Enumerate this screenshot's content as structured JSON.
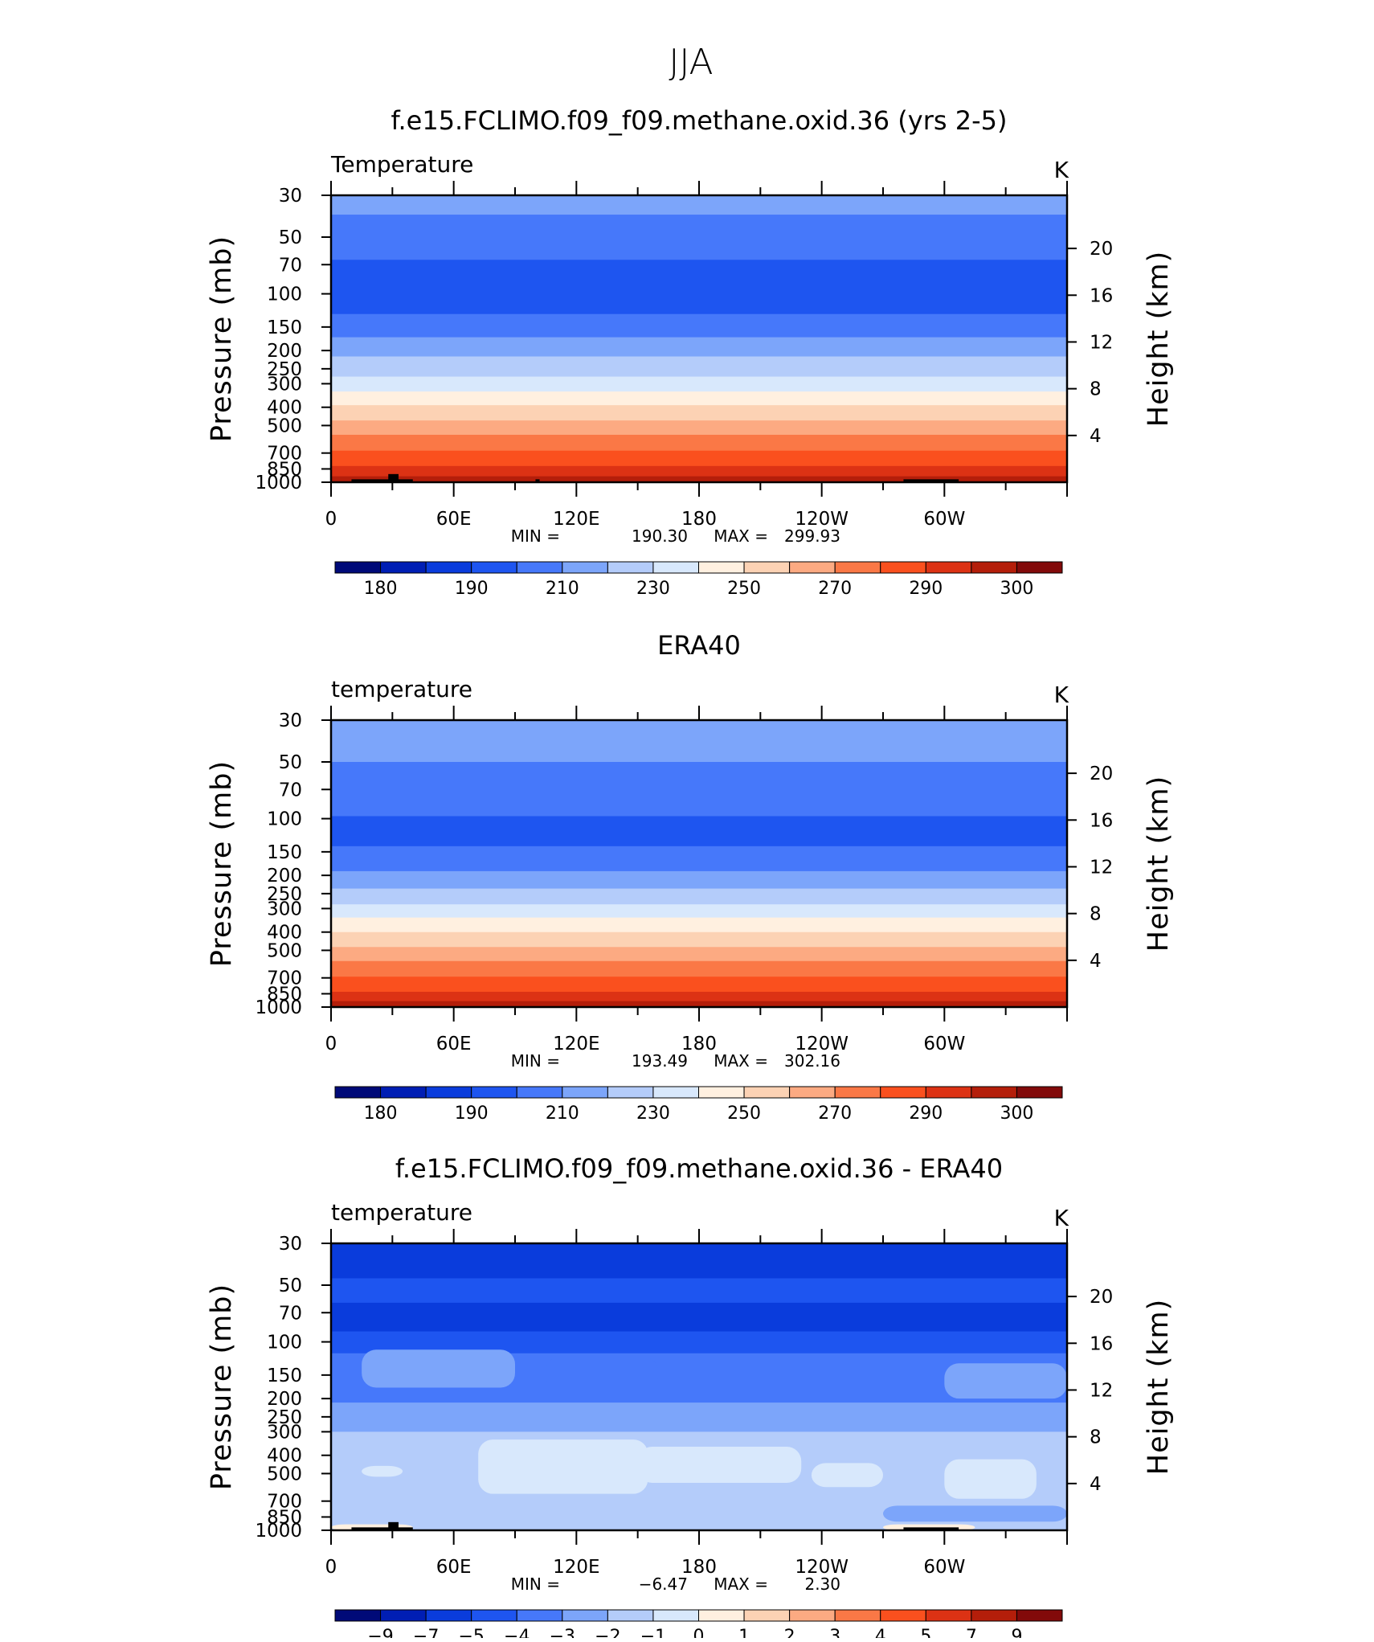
{
  "figure_title": "JJA",
  "colors": {
    "temperature_palette": [
      "#000a78",
      "#001eb4",
      "#0a3cdc",
      "#1e55f0",
      "#4678fa",
      "#7ca5fa",
      "#b4ccfa",
      "#d8e8fc",
      "#fff0e0",
      "#fcd2b4",
      "#fcaa82",
      "#fa7846",
      "#fa501e",
      "#dc3214",
      "#b41e0a",
      "#820a0a"
    ],
    "land": "#000000"
  },
  "chart_data": [
    {
      "type": "heatmap",
      "title": "f.e15.FCLIMO.f09_f09.methane.oxid.36 (yrs 2-5)",
      "left_string": "Temperature",
      "right_string": "K",
      "xlabel": "",
      "ylabel": "Pressure (mb)",
      "ylabel_right": "Height (km)",
      "x_ticks": [
        "0",
        "60E",
        "120E",
        "180",
        "120W",
        "60W"
      ],
      "y_ticks": [
        "30",
        "50",
        "70",
        "100",
        "150",
        "200",
        "250",
        "300",
        "400",
        "500",
        "700",
        "850",
        "1000"
      ],
      "y_right_ticks": [
        "20",
        "16",
        "12",
        "8",
        "4"
      ],
      "min_label": "MIN =",
      "min_value": "190.30",
      "max_label": "MAX =",
      "max_value": "299.93",
      "colorbar_labels": [
        "180",
        "190",
        "210",
        "230",
        "250",
        "270",
        "290",
        "300"
      ],
      "bands": [
        {
          "p_top": 30,
          "p_bot": 38,
          "value": 215
        },
        {
          "p_top": 38,
          "p_bot": 66,
          "value": 205
        },
        {
          "p_top": 66,
          "p_bot": 128,
          "value": 195
        },
        {
          "p_top": 128,
          "p_bot": 170,
          "value": 205
        },
        {
          "p_top": 170,
          "p_bot": 215,
          "value": 215
        },
        {
          "p_top": 215,
          "p_bot": 275,
          "value": 225
        },
        {
          "p_top": 275,
          "p_bot": 330,
          "value": 235
        },
        {
          "p_top": 330,
          "p_bot": 390,
          "value": 245
        },
        {
          "p_top": 390,
          "p_bot": 470,
          "value": 255
        },
        {
          "p_top": 470,
          "p_bot": 560,
          "value": 265
        },
        {
          "p_top": 560,
          "p_bot": 680,
          "value": 275
        },
        {
          "p_top": 680,
          "p_bot": 820,
          "value": 282
        },
        {
          "p_top": 820,
          "p_bot": 930,
          "value": 292
        },
        {
          "p_top": 930,
          "p_bot": 1000,
          "value": 296
        }
      ],
      "topography": [
        {
          "lon_start": 10,
          "lon_end": 40,
          "p_top": 965
        },
        {
          "lon_start": 28,
          "lon_end": 33,
          "p_top": 905
        },
        {
          "lon_start": 100,
          "lon_end": 102,
          "p_top": 965
        },
        {
          "lon_start": 280,
          "lon_end": 307,
          "p_top": 965
        }
      ]
    },
    {
      "type": "heatmap",
      "title": "ERA40",
      "left_string": "temperature",
      "right_string": "K",
      "xlabel": "",
      "ylabel": "Pressure (mb)",
      "ylabel_right": "Height (km)",
      "x_ticks": [
        "0",
        "60E",
        "120E",
        "180",
        "120W",
        "60W"
      ],
      "y_ticks": [
        "30",
        "50",
        "70",
        "100",
        "150",
        "200",
        "250",
        "300",
        "400",
        "500",
        "700",
        "850",
        "1000"
      ],
      "y_right_ticks": [
        "20",
        "16",
        "12",
        "8",
        "4"
      ],
      "min_label": "MIN =",
      "min_value": "193.49",
      "max_label": "MAX =",
      "max_value": "302.16",
      "colorbar_labels": [
        "180",
        "190",
        "210",
        "230",
        "250",
        "270",
        "290",
        "300"
      ],
      "bands": [
        {
          "p_top": 30,
          "p_bot": 50,
          "value": 215
        },
        {
          "p_top": 50,
          "p_bot": 97,
          "value": 205
        },
        {
          "p_top": 97,
          "p_bot": 140,
          "value": 195
        },
        {
          "p_top": 140,
          "p_bot": 190,
          "value": 205
        },
        {
          "p_top": 190,
          "p_bot": 235,
          "value": 215
        },
        {
          "p_top": 235,
          "p_bot": 285,
          "value": 225
        },
        {
          "p_top": 285,
          "p_bot": 335,
          "value": 235
        },
        {
          "p_top": 335,
          "p_bot": 400,
          "value": 245
        },
        {
          "p_top": 400,
          "p_bot": 480,
          "value": 255
        },
        {
          "p_top": 480,
          "p_bot": 570,
          "value": 265
        },
        {
          "p_top": 570,
          "p_bot": 690,
          "value": 275
        },
        {
          "p_top": 690,
          "p_bot": 830,
          "value": 282
        },
        {
          "p_top": 830,
          "p_bot": 930,
          "value": 292
        },
        {
          "p_top": 930,
          "p_bot": 1000,
          "value": 296
        }
      ],
      "topography": []
    },
    {
      "type": "heatmap",
      "title": "f.e15.FCLIMO.f09_f09.methane.oxid.36 - ERA40",
      "left_string": "temperature",
      "right_string": "K",
      "xlabel": "",
      "ylabel": "Pressure (mb)",
      "ylabel_right": "Height (km)",
      "x_ticks": [
        "0",
        "60E",
        "120E",
        "180",
        "120W",
        "60W"
      ],
      "y_ticks": [
        "30",
        "50",
        "70",
        "100",
        "150",
        "200",
        "250",
        "300",
        "400",
        "500",
        "700",
        "850",
        "1000"
      ],
      "y_right_ticks": [
        "20",
        "16",
        "12",
        "8",
        "4"
      ],
      "min_label": "MIN =",
      "min_value": "−6.47",
      "max_label": "MAX =",
      "max_value": "2.30",
      "colorbar_labels": [
        "−9",
        "−7",
        "−5",
        "−4",
        "−3",
        "−2",
        "−1",
        "0",
        "1",
        "2",
        "3",
        "4",
        "5",
        "7",
        "9"
      ],
      "bands": [
        {
          "p_top": 30,
          "p_bot": 46,
          "value": -6
        },
        {
          "p_top": 46,
          "p_bot": 62,
          "value": -4.5
        },
        {
          "p_top": 62,
          "p_bot": 88,
          "value": -6
        },
        {
          "p_top": 88,
          "p_bot": 115,
          "value": -4.5
        },
        {
          "p_top": 115,
          "p_bot": 210,
          "value": -3.5
        },
        {
          "p_top": 210,
          "p_bot": 300,
          "value": -2.5
        },
        {
          "p_top": 300,
          "p_bot": 1000,
          "value": -1.5
        }
      ],
      "patches": [
        {
          "lon_start": 72,
          "lon_end": 155,
          "p_top": 330,
          "p_bot": 640,
          "value": -0.5
        },
        {
          "lon_start": 150,
          "lon_end": 230,
          "p_top": 360,
          "p_bot": 560,
          "value": -0.5
        },
        {
          "lon_start": 235,
          "lon_end": 270,
          "p_top": 440,
          "p_bot": 590,
          "value": -0.5
        },
        {
          "lon_start": 300,
          "lon_end": 345,
          "p_top": 420,
          "p_bot": 680,
          "value": -0.5
        },
        {
          "lon_start": 15,
          "lon_end": 35,
          "p_top": 455,
          "p_bot": 520,
          "value": -0.5
        },
        {
          "lon_start": 15,
          "lon_end": 90,
          "p_top": 110,
          "p_bot": 175,
          "value": -2.5
        },
        {
          "lon_start": 105,
          "lon_end": 160,
          "p_top": 120,
          "p_bot": 180,
          "value": -3.5
        },
        {
          "lon_start": 300,
          "lon_end": 360,
          "p_top": 130,
          "p_bot": 200,
          "value": -2.5
        },
        {
          "lon_start": 270,
          "lon_end": 360,
          "p_top": 740,
          "p_bot": 900,
          "value": -2.5
        },
        {
          "lon_start": 0,
          "lon_end": 40,
          "p_top": 930,
          "p_bot": 1000,
          "value": 0.5
        },
        {
          "lon_start": 270,
          "lon_end": 315,
          "p_top": 930,
          "p_bot": 1000,
          "value": 0.5
        }
      ],
      "topography": [
        {
          "lon_start": 10,
          "lon_end": 40,
          "p_top": 965
        },
        {
          "lon_start": 28,
          "lon_end": 33,
          "p_top": 905
        },
        {
          "lon_start": 280,
          "lon_end": 307,
          "p_top": 965
        }
      ]
    }
  ]
}
